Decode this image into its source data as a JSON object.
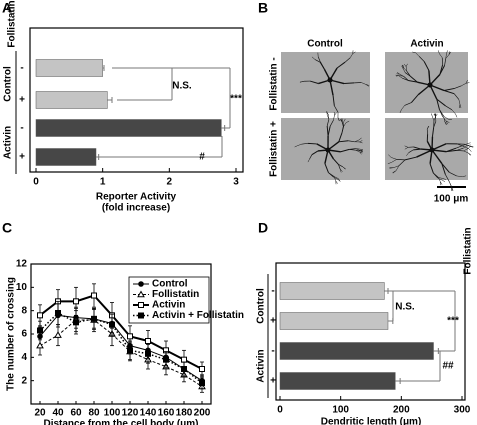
{
  "chart_data": [
    {
      "panel_label": "A",
      "type": "bar",
      "orientation": "horizontal",
      "factor_label": "Follistatin",
      "group_labels": [
        "Control",
        "Activin"
      ],
      "categories": [
        "-",
        "+",
        "-",
        "+"
      ],
      "values": [
        1.0,
        1.07,
        2.78,
        0.9
      ],
      "errors": [
        0.02,
        0.07,
        0.05,
        0.04
      ],
      "colors": [
        "#c4c4c4",
        "#c4c4c4",
        "#474747",
        "#474747"
      ],
      "xlim": [
        0,
        3
      ],
      "xticks": [
        0,
        1,
        2,
        3
      ],
      "x_label": [
        "Reporter Activity",
        "(fold increase)"
      ],
      "annotations": [
        "N.S.",
        "***",
        "#"
      ]
    },
    {
      "panel_label": "C",
      "type": "line",
      "x": [
        20,
        40,
        60,
        80,
        100,
        120,
        140,
        160,
        180,
        200
      ],
      "xlim": [
        10,
        210
      ],
      "xticks": [
        20,
        40,
        60,
        80,
        100,
        120,
        140,
        160,
        180,
        200
      ],
      "ylim": [
        0,
        12
      ],
      "yticks": [
        2,
        4,
        6,
        8,
        10,
        12
      ],
      "x_label": "Distance from the cell body (μm)",
      "y_label": "The number of crossing",
      "legend": "upper right",
      "series": [
        {
          "name": "Control",
          "color": "#000000",
          "marker": "circle-filled",
          "dash": "solid",
          "width": 1,
          "values": [
            5.8,
            7.6,
            7.4,
            7.3,
            6.9,
            5.0,
            4.6,
            4.0,
            3.0,
            2.0
          ],
          "errors": [
            0.8,
            1.0,
            0.9,
            0.8,
            0.8,
            0.7,
            0.7,
            0.7,
            0.6,
            0.5
          ]
        },
        {
          "name": "Follistatin",
          "color": "#000000",
          "marker": "triangle-open",
          "dash": "dashed",
          "width": 1,
          "values": [
            5.0,
            5.9,
            7.2,
            7.2,
            6.0,
            4.5,
            3.8,
            3.2,
            2.5,
            1.5
          ],
          "errors": [
            0.8,
            0.9,
            1.0,
            1.0,
            1.0,
            0.8,
            0.8,
            0.7,
            0.6,
            0.5
          ]
        },
        {
          "name": "Activin",
          "color": "#000000",
          "marker": "square-open",
          "dash": "solid",
          "width": 2,
          "values": [
            7.6,
            8.8,
            8.8,
            9.3,
            7.6,
            5.8,
            5.4,
            4.6,
            3.8,
            3.0
          ],
          "errors": [
            0.9,
            1.0,
            1.2,
            1.0,
            1.1,
            0.9,
            0.9,
            0.8,
            0.8,
            0.6
          ]
        },
        {
          "name": "Activin + Follistatin",
          "color": "#000000",
          "marker": "square-filled",
          "dash": "dotted",
          "width": 1.5,
          "values": [
            6.3,
            7.8,
            7.0,
            7.3,
            6.8,
            4.6,
            4.3,
            3.8,
            3.0,
            1.8
          ],
          "errors": [
            0.8,
            1.0,
            1.0,
            0.9,
            0.9,
            0.8,
            0.8,
            0.7,
            0.6,
            0.5
          ]
        }
      ]
    },
    {
      "panel_label": "D",
      "type": "bar",
      "orientation": "horizontal",
      "factor_label": "Follistatin",
      "group_labels": [
        "Control",
        "Activin"
      ],
      "categories": [
        "-",
        "+",
        "-",
        "+"
      ],
      "values": [
        172,
        178,
        253,
        190
      ],
      "errors": [
        6,
        8,
        8,
        8
      ],
      "colors": [
        "#c4c4c4",
        "#c4c4c4",
        "#474747",
        "#474747"
      ],
      "xlim": [
        0,
        300
      ],
      "xticks": [
        0,
        100,
        200,
        300
      ],
      "x_label": [
        "Dendritic length (μm)"
      ],
      "annotations": [
        "N.S.",
        "***",
        "##"
      ]
    }
  ],
  "image_panel": {
    "panel_label": "B",
    "columns": [
      "Control",
      "Activin"
    ],
    "rows": [
      "Follistatin -",
      "Follistatin +"
    ],
    "scale_bar": "100 μm"
  }
}
